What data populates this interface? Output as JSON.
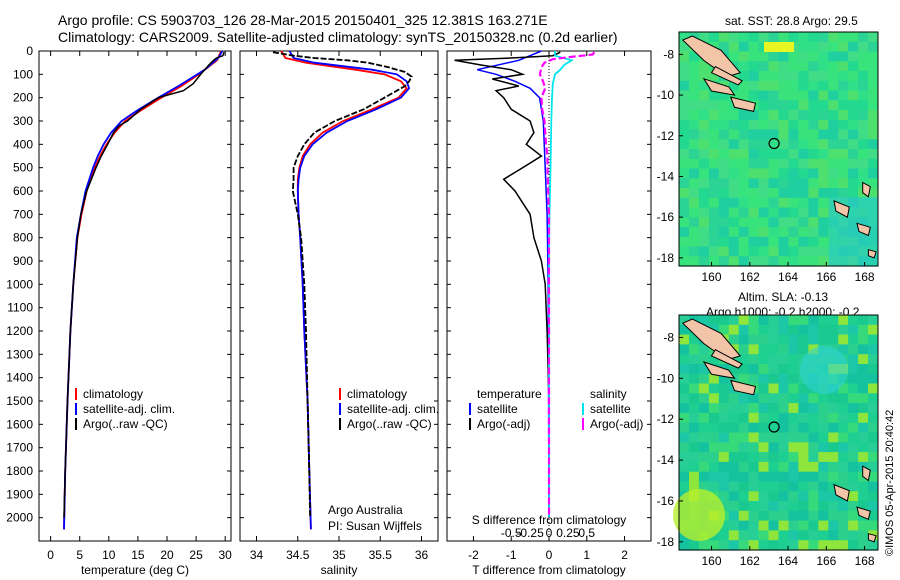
{
  "header": {
    "line1": "Argo profile: CS 5903703_126 28-Mar-2015 20150401_325 12.381S 163.271E",
    "line2": "Climatology: CARS2009. Satellite-adjusted climatology: synTS_20150328.nc (0.2d earlier)"
  },
  "colors": {
    "clim": "#ff0000",
    "sat": "#0000ff",
    "argo": "#000000",
    "sal_sat": "#00e5ee",
    "sal_argo": "#ff00ff"
  },
  "chart_data": [
    {
      "type": "line",
      "xlabel": "temperature (deg C)",
      "xlim": [
        -2,
        31
      ],
      "ylim": [
        2100,
        0
      ],
      "xticks": [
        0,
        5,
        10,
        15,
        20,
        25,
        30
      ],
      "yticks": [
        0,
        100,
        200,
        300,
        400,
        500,
        600,
        700,
        800,
        900,
        1000,
        1100,
        1200,
        1300,
        1400,
        1500,
        1600,
        1700,
        1800,
        1900,
        2000
      ],
      "legend": [
        "climatology",
        "satellite-adj. clim.",
        "Argo(..raw -QC)"
      ],
      "series": [
        {
          "name": "climatology",
          "depth": [
            0,
            40,
            100,
            150,
            200,
            250,
            300,
            350,
            400,
            450,
            500,
            600,
            700,
            800,
            1000,
            1200,
            1500,
            1800,
            2050
          ],
          "values": [
            29.3,
            28.6,
            25.5,
            22.5,
            19.0,
            15.8,
            12.8,
            11.0,
            9.6,
            8.5,
            7.6,
            6.2,
            5.3,
            4.6,
            3.9,
            3.4,
            2.9,
            2.5,
            2.3
          ]
        },
        {
          "name": "satellite-adj. clim.",
          "depth": [
            0,
            30,
            80,
            150,
            200,
            250,
            300,
            350,
            400,
            450,
            500,
            600,
            700,
            800,
            1000,
            1200,
            1500,
            1800,
            2050
          ],
          "values": [
            29.5,
            28.8,
            26.5,
            22.0,
            18.5,
            15.2,
            12.2,
            10.4,
            9.1,
            8.1,
            7.3,
            6.0,
            5.2,
            4.5,
            3.9,
            3.4,
            2.9,
            2.5,
            2.3
          ]
        },
        {
          "name": "Argo(..raw -QC)",
          "depth": [
            5,
            20,
            30,
            40,
            60,
            100,
            140,
            170,
            200,
            250,
            300,
            320,
            350,
            400,
            450,
            500,
            600,
            700,
            800,
            1000,
            1200,
            1500,
            1800,
            2000
          ],
          "values": [
            29.8,
            29.6,
            28.5,
            28.0,
            27.2,
            25.8,
            24.5,
            22.8,
            18.5,
            15.5,
            13.2,
            11.8,
            10.8,
            9.8,
            8.7,
            7.8,
            6.2,
            5.2,
            4.6,
            3.9,
            3.4,
            2.9,
            2.5,
            2.3
          ]
        }
      ]
    },
    {
      "type": "line",
      "xlabel": "salinity",
      "xlim": [
        33.8,
        36.2
      ],
      "ylim": [
        2100,
        0
      ],
      "xticks": [
        34,
        34.5,
        35,
        35.5,
        36
      ],
      "legend": [
        "climatology",
        "satellite-adj. clim.",
        "Argo(..raw -QC)"
      ],
      "annotation": [
        "Argo Australia",
        "PI: Susan Wijffels"
      ],
      "series": [
        {
          "name": "climatology",
          "depth": [
            0,
            30,
            50,
            80,
            100,
            130,
            160,
            200,
            250,
            300,
            350,
            400,
            450,
            500,
            550,
            600,
            700,
            800,
            1000,
            1200,
            1500,
            1800,
            2050
          ],
          "values": [
            34.3,
            34.35,
            34.6,
            35.2,
            35.55,
            35.75,
            35.82,
            35.72,
            35.4,
            35.05,
            34.8,
            34.65,
            34.56,
            34.52,
            34.5,
            34.5,
            34.51,
            34.53,
            34.56,
            34.58,
            34.62,
            34.64,
            34.66
          ]
        },
        {
          "name": "satellite-adj. clim.",
          "depth": [
            0,
            30,
            50,
            80,
            100,
            130,
            160,
            200,
            250,
            300,
            350,
            400,
            450,
            500,
            550,
            600,
            700,
            800,
            1000,
            1200,
            1500,
            1800,
            2050
          ],
          "values": [
            34.4,
            34.45,
            34.7,
            35.4,
            35.7,
            35.82,
            35.85,
            35.75,
            35.45,
            35.1,
            34.85,
            34.68,
            34.58,
            34.53,
            34.51,
            34.5,
            34.51,
            34.53,
            34.56,
            34.58,
            34.62,
            34.64,
            34.66
          ]
        },
        {
          "name": "Argo(..raw -QC)",
          "depth": [
            5,
            20,
            30,
            40,
            50,
            70,
            90,
            110,
            130,
            150,
            170,
            200,
            250,
            300,
            350,
            400,
            450,
            500,
            550,
            600,
            650,
            700,
            800,
            1000,
            1200,
            1500,
            1800,
            2000
          ],
          "values": [
            34.2,
            34.45,
            34.7,
            35.1,
            35.35,
            35.6,
            35.8,
            35.88,
            35.85,
            35.8,
            35.7,
            35.55,
            35.3,
            34.95,
            34.7,
            34.58,
            34.5,
            34.45,
            34.45,
            34.44,
            34.47,
            34.5,
            34.54,
            34.58,
            34.6,
            34.62,
            34.64,
            34.65
          ]
        }
      ]
    },
    {
      "type": "line",
      "xlabel": "T difference from climatology",
      "xlabel2": "S difference from climatology",
      "xlim": [
        -2.7,
        2.7
      ],
      "ylim": [
        2100,
        0
      ],
      "xticks": [
        -2,
        -1,
        0,
        1,
        2
      ],
      "xticks_S": [
        "-0.5",
        "-0.25",
        "0",
        "0.25",
        "0.5"
      ],
      "legend": [
        "temperature",
        "satellite",
        "Argo(-adj)",
        "salinity",
        "satellite",
        "Argo(-adj)"
      ],
      "series": [
        {
          "name": "temperature satellite",
          "depth": [
            0,
            40,
            80,
            100,
            130,
            160,
            200,
            300,
            500,
            700,
            1000,
            2000
          ],
          "values": [
            -0.2,
            -0.8,
            -1.9,
            -1.4,
            -0.9,
            -0.5,
            -0.25,
            -0.15,
            -0.1,
            -0.05,
            -0.02,
            0.0
          ]
        },
        {
          "name": "temperature Argo(-adj)",
          "depth": [
            5,
            20,
            30,
            40,
            60,
            80,
            100,
            120,
            150,
            170,
            200,
            250,
            300,
            350,
            400,
            450,
            500,
            550,
            600,
            700,
            800,
            900,
            1000,
            1200,
            1500,
            1800,
            2000
          ],
          "values": [
            0.3,
            0.1,
            -1.0,
            -2.5,
            -1.8,
            -1.0,
            -0.7,
            -1.5,
            -0.8,
            -1.4,
            -1.2,
            -1.0,
            -0.5,
            -0.4,
            -0.6,
            -0.2,
            -0.7,
            -1.2,
            -0.9,
            -0.5,
            -0.4,
            -0.2,
            -0.1,
            -0.05,
            0.0,
            0.0,
            0.0
          ]
        },
        {
          "name": "salinity satellite",
          "depth": [
            0,
            20,
            40,
            60,
            80,
            100,
            140,
            200,
            300,
            500,
            800,
            1200,
            2000
          ],
          "values": [
            0.08,
            0.08,
            0.3,
            0.2,
            0.15,
            0.08,
            0.05,
            0.04,
            0.03,
            0.02,
            0.0,
            0.0,
            0.0
          ]
        },
        {
          "name": "salinity Argo(-adj)",
          "depth": [
            5,
            15,
            25,
            35,
            50,
            70,
            100,
            130,
            160,
            200,
            250,
            300,
            350,
            400,
            450,
            500,
            600,
            700,
            900,
            1200,
            1600,
            2000
          ],
          "values": [
            0.6,
            0.58,
            0.3,
            0.05,
            -0.06,
            -0.1,
            -0.12,
            -0.08,
            -0.05,
            -0.1,
            -0.09,
            -0.06,
            -0.05,
            -0.04,
            -0.02,
            -0.02,
            -0.01,
            0.0,
            0.0,
            0.0,
            0.0,
            0.0
          ]
        }
      ]
    }
  ],
  "maps": [
    {
      "title": "sat. SST: 28.8 Argo: 29.5",
      "xticks": [
        160,
        162,
        164,
        166,
        168
      ],
      "yticks": [
        -8,
        -10,
        -12,
        -14,
        -16,
        -18
      ],
      "xlim": [
        158.3,
        168.7
      ],
      "ylim": [
        -18.4,
        -6.9
      ],
      "marker": [
        163.27,
        -12.38
      ]
    },
    {
      "title_line1": "Altim. SLA: -0.13",
      "title_line2": "Argo h1000: -0.2 h2000: -0.2",
      "xticks": [
        160,
        162,
        164,
        166,
        168
      ],
      "yticks": [
        -8,
        -10,
        -12,
        -14,
        -16,
        -18
      ],
      "xlim": [
        158.3,
        168.7
      ],
      "ylim": [
        -18.4,
        -6.9
      ],
      "marker": [
        163.27,
        -12.38
      ]
    }
  ],
  "credit": "©IMOS 05-Apr-2015 20:40:42"
}
